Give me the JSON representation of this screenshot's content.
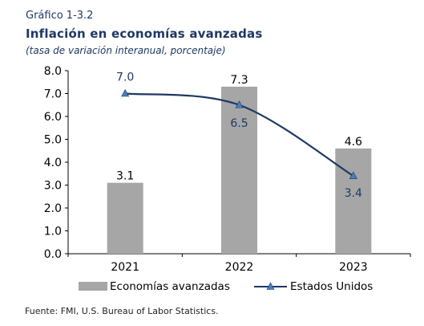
{
  "header": {
    "chart_label": "Gráfico 1-3.2",
    "title": "Inflación en economías avanzadas",
    "subtitle": "(tasa de variación interanual, porcentaje)"
  },
  "footer": {
    "source": "Fuente: FMI, U.S. Bureau of Labor Statistics."
  },
  "chart_data": {
    "type": "bar",
    "title": "Inflación en economías avanzadas",
    "subtitle": "(tasa de variación interanual, porcentaje)",
    "categories": [
      "2021",
      "2022",
      "2023"
    ],
    "ylim": [
      0.0,
      8.0
    ],
    "yticks": [
      "0.0",
      "1.0",
      "2.0",
      "3.0",
      "4.0",
      "5.0",
      "6.0",
      "7.0",
      "8.0"
    ],
    "grid": false,
    "legend_position": "bottom",
    "series": [
      {
        "name": "Economías avanzadas",
        "kind": "bar",
        "color": "#a6a6a6",
        "values": [
          3.1,
          7.3,
          4.6
        ],
        "labels": [
          "3.1",
          "7.3",
          "4.6"
        ]
      },
      {
        "name": "Estados Unidos",
        "kind": "line",
        "color": "#1f3864",
        "marker_color": "#4a7ebb",
        "values": [
          7.0,
          6.5,
          3.4
        ],
        "labels": [
          "7.0",
          "6.5",
          "3.4"
        ]
      }
    ]
  }
}
